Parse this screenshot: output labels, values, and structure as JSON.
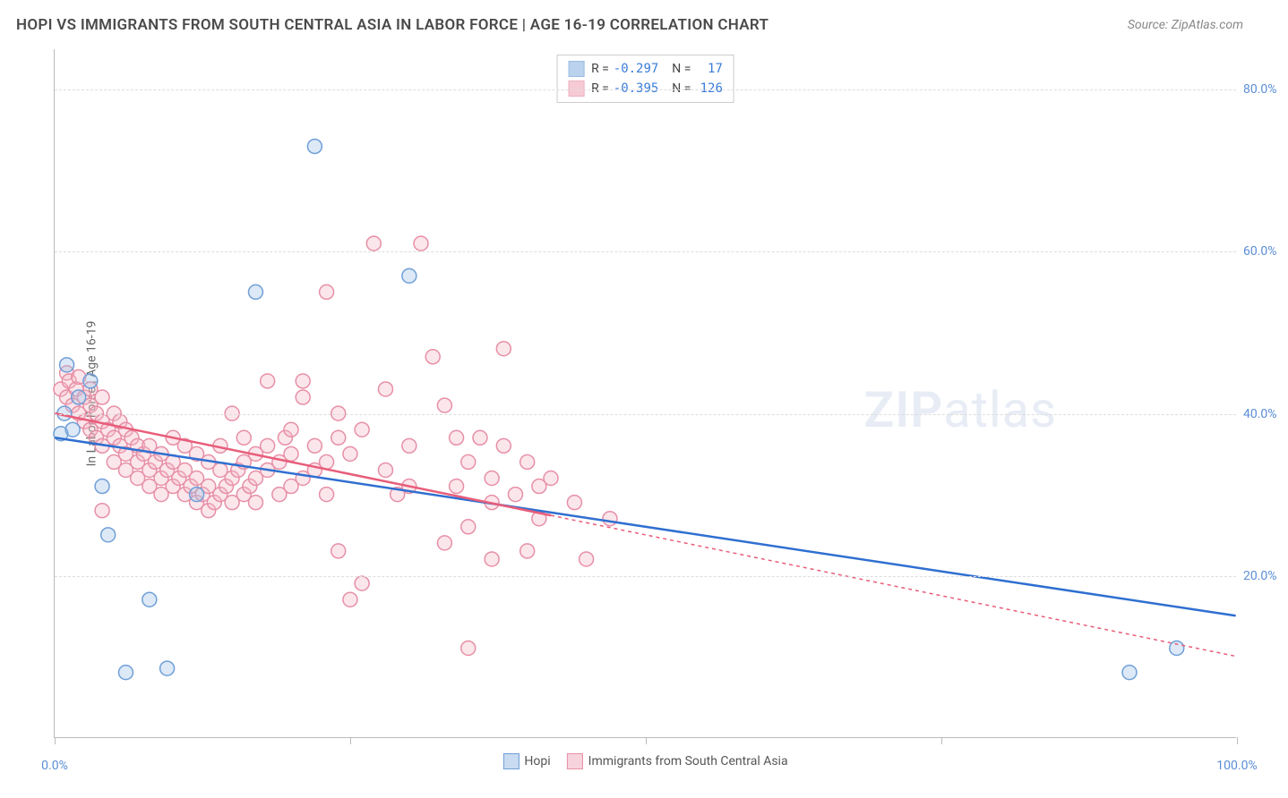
{
  "title": "HOPI VS IMMIGRANTS FROM SOUTH CENTRAL ASIA IN LABOR FORCE | AGE 16-19 CORRELATION CHART",
  "source": "Source: ZipAtlas.com",
  "y_axis_label": "In Labor Force | Age 16-19",
  "watermark_bold": "ZIP",
  "watermark_rest": "atlas",
  "chart": {
    "type": "scatter",
    "xlim": [
      0,
      100
    ],
    "ylim": [
      0,
      85
    ],
    "x_ticks": [
      0,
      25,
      50,
      75,
      100
    ],
    "x_tick_labels": [
      "0.0%",
      "",
      "",
      "",
      "100.0%"
    ],
    "y_ticks": [
      20,
      40,
      60,
      80
    ],
    "y_tick_labels": [
      "20.0%",
      "40.0%",
      "60.0%",
      "80.0%"
    ],
    "background": "#ffffff",
    "grid_color": "#dddddd",
    "axis_color": "#bbbbbb",
    "tick_label_color": "#5b8dd6",
    "marker_radius": 8,
    "marker_stroke_width": 1.5,
    "marker_fill_opacity": 0.35,
    "series": [
      {
        "name": "Hopi",
        "color_stroke": "#6f9fd8",
        "color_fill": "#9dbfe6",
        "line_color": "#2f6fd0",
        "line_dash": "none",
        "R": -0.297,
        "N": 17,
        "regression": {
          "x1": 0,
          "y1": 37,
          "x2": 100,
          "y2": 15
        },
        "regression_solid_xmax": 100,
        "points": [
          [
            0.5,
            37.5
          ],
          [
            1,
            46
          ],
          [
            3,
            44
          ],
          [
            4,
            31
          ],
          [
            4.5,
            25
          ],
          [
            6,
            8
          ],
          [
            8,
            17
          ],
          [
            9.5,
            8.5
          ],
          [
            12,
            30
          ],
          [
            17,
            55
          ],
          [
            22,
            73
          ],
          [
            30,
            57
          ],
          [
            91,
            8
          ],
          [
            95,
            11
          ],
          [
            0.8,
            40
          ],
          [
            2,
            42
          ],
          [
            1.5,
            38
          ]
        ]
      },
      {
        "name": "Immigrants from South Central Asia",
        "color_stroke": "#e78fa6",
        "color_fill": "#f3b6c5",
        "line_color": "#e85d7a",
        "line_dash": "4,4",
        "R": -0.395,
        "N": 126,
        "regression": {
          "x1": 0,
          "y1": 40,
          "x2": 100,
          "y2": 10
        },
        "regression_solid_xmax": 42,
        "points": [
          [
            0.5,
            43
          ],
          [
            1,
            45
          ],
          [
            1,
            42
          ],
          [
            1.2,
            44
          ],
          [
            1.5,
            41
          ],
          [
            1.8,
            43
          ],
          [
            2,
            40
          ],
          [
            2,
            44.5
          ],
          [
            2.5,
            42
          ],
          [
            2.5,
            39
          ],
          [
            3,
            41
          ],
          [
            3,
            38
          ],
          [
            3,
            43
          ],
          [
            3.5,
            40
          ],
          [
            3.5,
            37
          ],
          [
            4,
            39
          ],
          [
            4,
            36
          ],
          [
            4,
            42
          ],
          [
            4,
            28
          ],
          [
            4.5,
            38
          ],
          [
            5,
            37
          ],
          [
            5,
            40
          ],
          [
            5,
            34
          ],
          [
            5.5,
            36
          ],
          [
            5.5,
            39
          ],
          [
            6,
            35
          ],
          [
            6,
            38
          ],
          [
            6,
            33
          ],
          [
            6.5,
            37
          ],
          [
            7,
            34
          ],
          [
            7,
            36
          ],
          [
            7,
            32
          ],
          [
            7.5,
            35
          ],
          [
            8,
            33
          ],
          [
            8,
            36
          ],
          [
            8,
            31
          ],
          [
            8.5,
            34
          ],
          [
            9,
            32
          ],
          [
            9,
            35
          ],
          [
            9,
            30
          ],
          [
            9.5,
            33
          ],
          [
            10,
            31
          ],
          [
            10,
            34
          ],
          [
            10,
            37
          ],
          [
            10.5,
            32
          ],
          [
            11,
            30
          ],
          [
            11,
            33
          ],
          [
            11,
            36
          ],
          [
            11.5,
            31
          ],
          [
            12,
            29
          ],
          [
            12,
            32
          ],
          [
            12,
            35
          ],
          [
            12.5,
            30
          ],
          [
            13,
            28
          ],
          [
            13,
            31
          ],
          [
            13,
            34
          ],
          [
            13.5,
            29
          ],
          [
            14,
            30
          ],
          [
            14,
            33
          ],
          [
            14,
            36
          ],
          [
            14.5,
            31
          ],
          [
            15,
            29
          ],
          [
            15,
            32
          ],
          [
            15,
            40
          ],
          [
            15.5,
            33
          ],
          [
            16,
            30
          ],
          [
            16,
            34
          ],
          [
            16,
            37
          ],
          [
            16.5,
            31
          ],
          [
            17,
            29
          ],
          [
            17,
            32
          ],
          [
            17,
            35
          ],
          [
            18,
            33
          ],
          [
            18,
            36
          ],
          [
            18,
            44
          ],
          [
            19,
            30
          ],
          [
            19,
            34
          ],
          [
            19.5,
            37
          ],
          [
            20,
            31
          ],
          [
            20,
            35
          ],
          [
            20,
            38
          ],
          [
            21,
            32
          ],
          [
            21,
            44
          ],
          [
            21,
            42
          ],
          [
            22,
            33
          ],
          [
            22,
            36
          ],
          [
            23,
            30
          ],
          [
            23,
            34
          ],
          [
            23,
            55
          ],
          [
            24,
            37
          ],
          [
            24,
            40
          ],
          [
            24,
            23
          ],
          [
            25,
            35
          ],
          [
            25,
            17
          ],
          [
            26,
            19
          ],
          [
            26,
            38
          ],
          [
            27,
            61
          ],
          [
            28,
            33
          ],
          [
            28,
            43
          ],
          [
            29,
            30
          ],
          [
            30,
            36
          ],
          [
            30,
            31
          ],
          [
            31,
            61
          ],
          [
            32,
            47
          ],
          [
            33,
            24
          ],
          [
            33,
            41
          ],
          [
            34,
            31
          ],
          [
            34,
            37
          ],
          [
            35,
            34
          ],
          [
            35,
            11
          ],
          [
            35,
            26
          ],
          [
            36,
            37
          ],
          [
            37,
            29
          ],
          [
            37,
            22
          ],
          [
            37,
            32
          ],
          [
            38,
            36
          ],
          [
            38,
            48
          ],
          [
            39,
            30
          ],
          [
            40,
            23
          ],
          [
            40,
            34
          ],
          [
            41,
            31
          ],
          [
            41,
            27
          ],
          [
            42,
            32
          ],
          [
            44,
            29
          ],
          [
            45,
            22
          ],
          [
            47,
            27
          ]
        ]
      }
    ]
  },
  "legend_top": {
    "R_label": "R =",
    "N_label": "N ="
  },
  "legend_bottom": [
    {
      "label": "Hopi",
      "stroke": "#6f9fd8",
      "fill": "#c9dbf0"
    },
    {
      "label": "Immigrants from South Central Asia",
      "stroke": "#e78fa6",
      "fill": "#f7d4dd"
    }
  ]
}
